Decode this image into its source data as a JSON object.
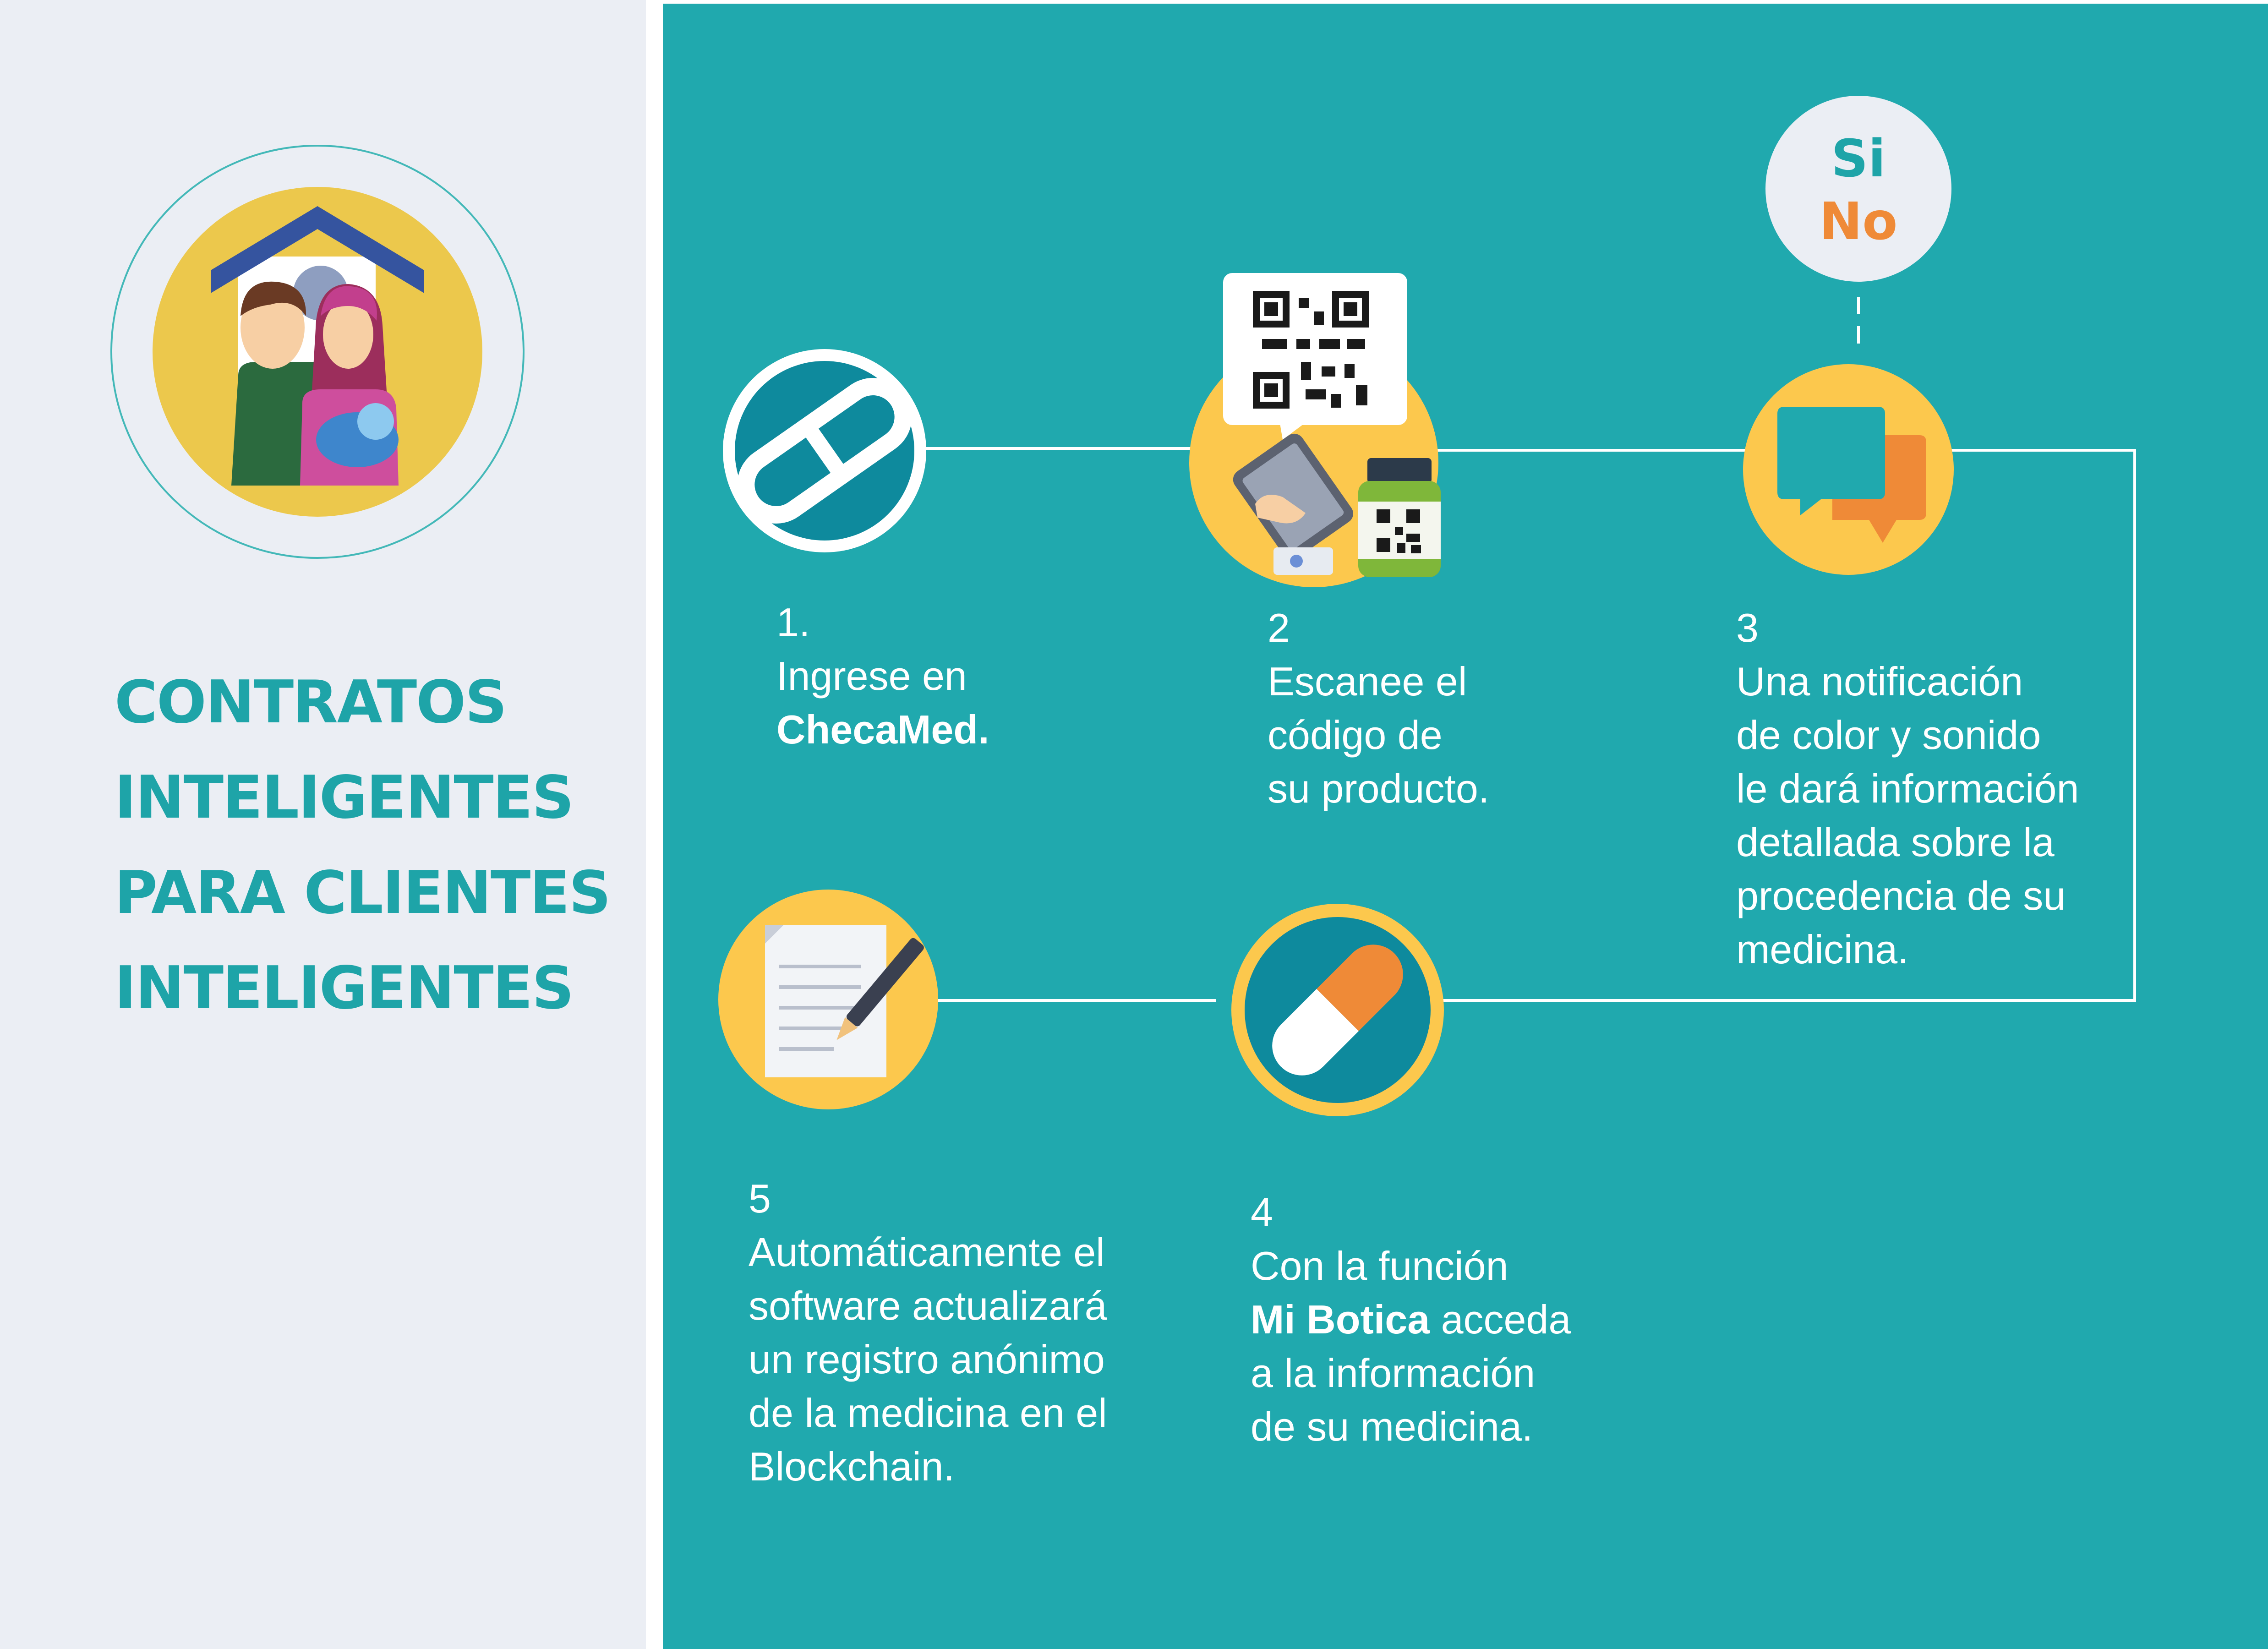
{
  "sidebar": {
    "title_lines": [
      "CONTRATOS",
      "INTELIGENTES",
      "PARA CLIENTES",
      "INTELIGENTES"
    ],
    "icon": "family-house-icon"
  },
  "decision_bubble": {
    "yes": "Si",
    "no": "No"
  },
  "steps": [
    {
      "number": "1.",
      "lines": [
        "Ingrese en"
      ],
      "bold": "ChecaMed.",
      "icon": "checamed-logo-icon"
    },
    {
      "number": "2",
      "lines": [
        "Escanee el",
        "código de",
        "su producto."
      ],
      "icon": "qr-scan-icon"
    },
    {
      "number": "3",
      "lines": [
        "Una notificación",
        "de color y sonido",
        "le dará información",
        "detallada sobre la",
        "procedencia de su",
        "medicina."
      ],
      "icon": "chat-bubbles-icon"
    },
    {
      "number": "4",
      "line1": "Con la función",
      "bold": "Mi Botica",
      "bold_suffix": " acceda",
      "lines": [
        "a la información",
        "de su medicina."
      ],
      "icon": "capsule-icon"
    },
    {
      "number": "5",
      "lines": [
        "Automáticamente el",
        "software actualizará",
        "un registro anónimo",
        "de la medicina en el",
        "Blockchain."
      ],
      "icon": "document-pen-icon"
    }
  ],
  "colors": {
    "teal": "#20a9ae",
    "title_teal": "#1ea4a8",
    "yellow": "#fcc84d",
    "orange": "#ef8a37",
    "sidebar_bg": "#ebeef4",
    "dark_teal": "#0e8a9d"
  }
}
